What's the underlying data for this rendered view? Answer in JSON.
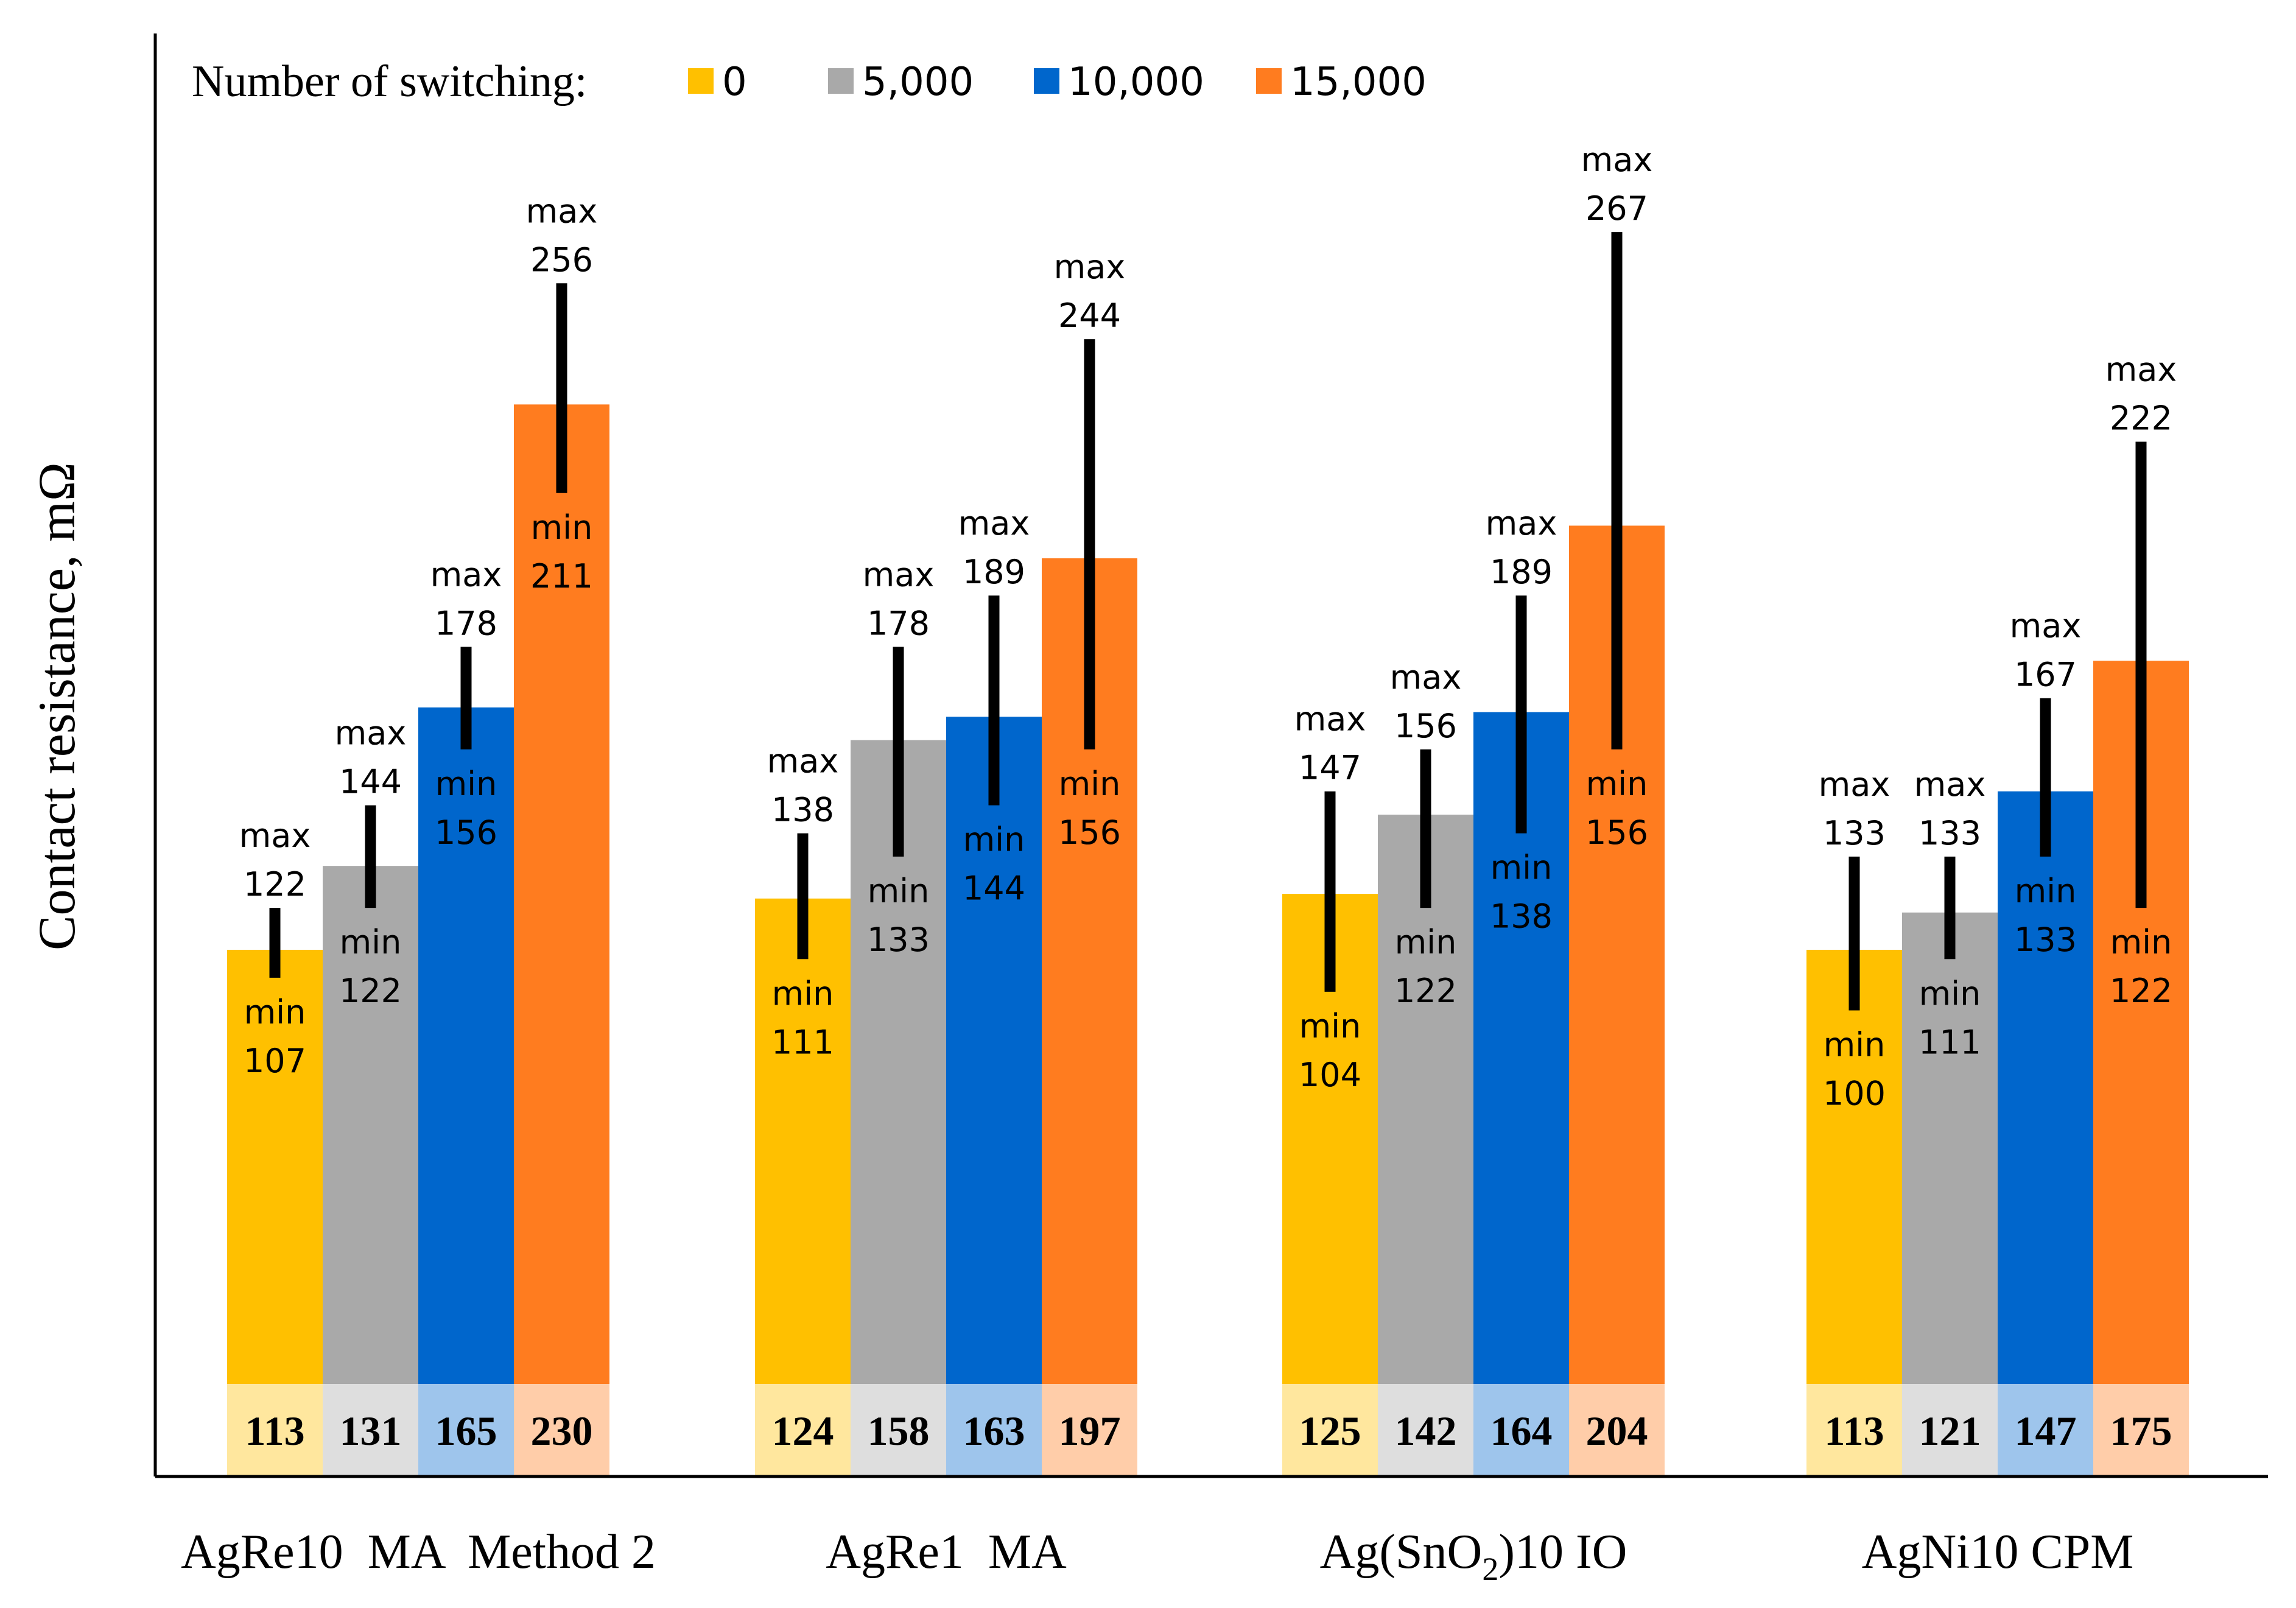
{
  "chart_data": {
    "type": "bar",
    "title": "",
    "xlabel": "",
    "ylabel": "Contact resistance, mΩ",
    "ylim": [
      0,
      290
    ],
    "grid": false,
    "legend": {
      "title": "Number of switching:",
      "placement": "top",
      "entries": [
        "0",
        "5,000",
        "10,000",
        "15,000"
      ]
    },
    "categories": [
      "AgRe10  MA  Method 2",
      "AgRe1  MA",
      "Ag(SnO2)10 IO",
      "AgNi10 CPM"
    ],
    "category_label_parts": [
      {
        "text": "AgRe10  MA  Method 2"
      },
      {
        "text": "AgRe1  MA"
      },
      {
        "prefix": "Ag(SnO",
        "sub": "2",
        "suffix": ")10 IO"
      },
      {
        "text": "AgNi10 CPM"
      }
    ],
    "series": [
      {
        "name": "0",
        "color": "#FFC000",
        "values": [
          113,
          124,
          125,
          113
        ],
        "min": [
          107,
          111,
          104,
          100
        ],
        "max": [
          122,
          138,
          147,
          133
        ]
      },
      {
        "name": "5,000",
        "color": "#A9A9A9",
        "values": [
          131,
          158,
          142,
          121
        ],
        "min": [
          122,
          133,
          122,
          111
        ],
        "max": [
          144,
          178,
          156,
          133
        ]
      },
      {
        "name": "10,000",
        "color": "#0066CC",
        "values": [
          165,
          163,
          164,
          147
        ],
        "min": [
          156,
          144,
          138,
          133
        ],
        "max": [
          178,
          189,
          189,
          167
        ]
      },
      {
        "name": "15,000",
        "color": "#FF7C1F",
        "values": [
          230,
          197,
          204,
          175
        ],
        "min": [
          211,
          156,
          156,
          122
        ],
        "max": [
          256,
          244,
          267,
          222
        ]
      }
    ],
    "range_label_words": {
      "min": "min",
      "max": "max"
    },
    "errorbar_color": "#000000"
  }
}
